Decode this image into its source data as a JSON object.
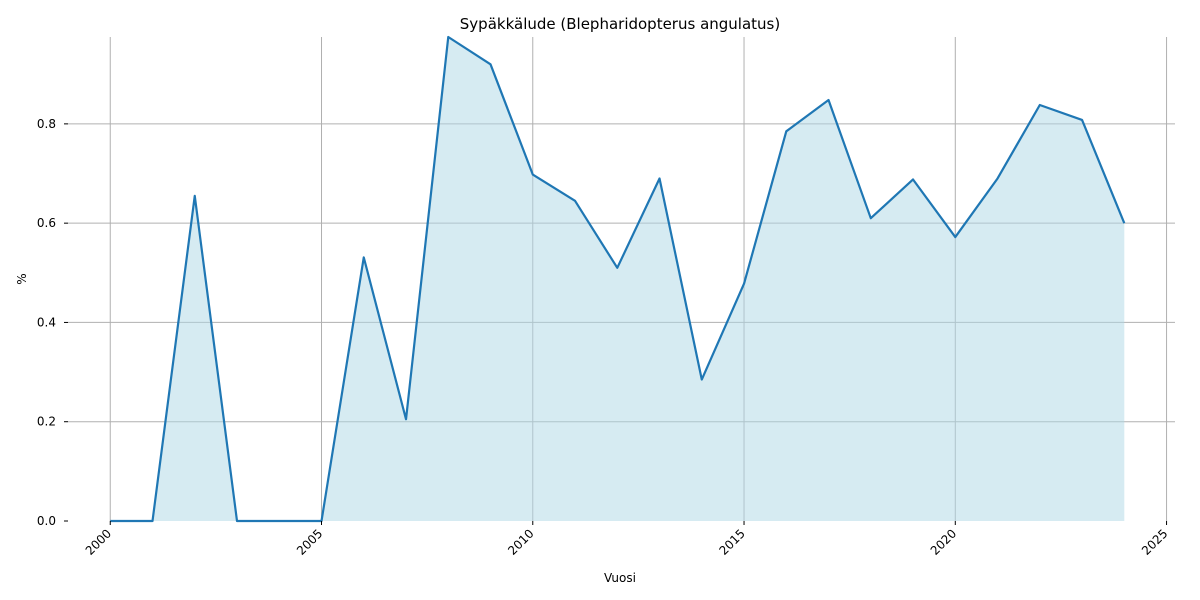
{
  "chart_data": {
    "type": "area",
    "title": "Sypäkkälude (Blepharidopterus angulatus)",
    "xlabel": "Vuosi",
    "ylabel": "%",
    "xlim": [
      1999.0,
      2025.2
    ],
    "ylim": [
      0.0,
      0.975
    ],
    "x_ticks": [
      2000,
      2005,
      2010,
      2015,
      2020,
      2025
    ],
    "y_ticks": [
      0.0,
      0.2,
      0.4,
      0.6,
      0.8
    ],
    "x_tick_labels": [
      "2000",
      "2005",
      "2010",
      "2015",
      "2020",
      "2025"
    ],
    "y_tick_labels": [
      "0.0",
      "0.2",
      "0.4",
      "0.6",
      "0.8"
    ],
    "grid": true,
    "series": [
      {
        "x": [
          2000,
          2001,
          2002,
          2003,
          2004,
          2005,
          2006,
          2007,
          2008,
          2009,
          2010,
          2011,
          2012,
          2013,
          2014,
          2015,
          2016,
          2017,
          2018,
          2019,
          2020,
          2021,
          2022,
          2023,
          2024
        ],
        "values": [
          0.0,
          0.0,
          0.655,
          0.0,
          0.0,
          0.0,
          0.531,
          0.205,
          0.975,
          0.92,
          0.698,
          0.645,
          0.51,
          0.69,
          0.285,
          0.478,
          0.785,
          0.848,
          0.61,
          0.688,
          0.572,
          0.69,
          0.838,
          0.808,
          0.6
        ],
        "line_color": "#1f77b4",
        "fill_color": "#add8e6"
      }
    ]
  }
}
